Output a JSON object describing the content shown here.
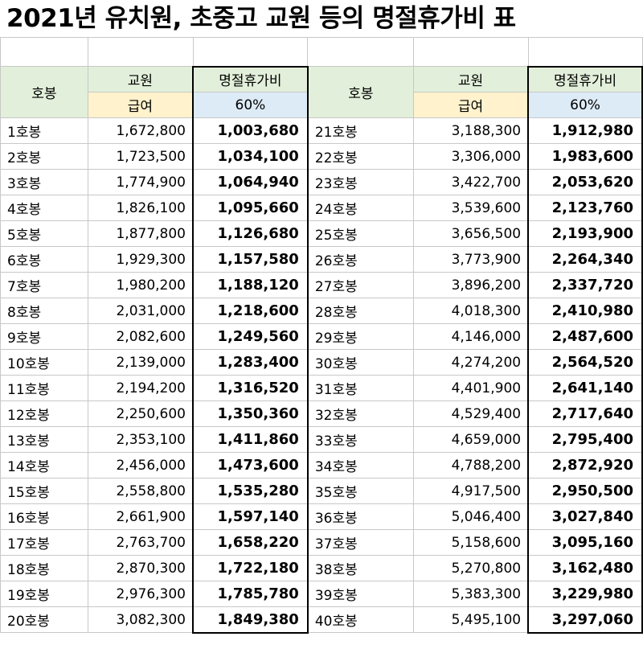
{
  "title": "2021년 유치원, 초중고 교원 등의 명절휴가비 표",
  "headers": {
    "grade": "호봉",
    "teacher": "교원",
    "pay": "급여",
    "holiday": "명절휴가비",
    "rate": "60%"
  },
  "left": [
    {
      "grade": "1호봉",
      "pay": "1,672,800",
      "holiday": "1,003,680"
    },
    {
      "grade": "2호봉",
      "pay": "1,723,500",
      "holiday": "1,034,100"
    },
    {
      "grade": "3호봉",
      "pay": "1,774,900",
      "holiday": "1,064,940"
    },
    {
      "grade": "4호봉",
      "pay": "1,826,100",
      "holiday": "1,095,660"
    },
    {
      "grade": "5호봉",
      "pay": "1,877,800",
      "holiday": "1,126,680"
    },
    {
      "grade": "6호봉",
      "pay": "1,929,300",
      "holiday": "1,157,580"
    },
    {
      "grade": "7호봉",
      "pay": "1,980,200",
      "holiday": "1,188,120"
    },
    {
      "grade": "8호봉",
      "pay": "2,031,000",
      "holiday": "1,218,600"
    },
    {
      "grade": "9호봉",
      "pay": "2,082,600",
      "holiday": "1,249,560"
    },
    {
      "grade": "10호봉",
      "pay": "2,139,000",
      "holiday": "1,283,400"
    },
    {
      "grade": "11호봉",
      "pay": "2,194,200",
      "holiday": "1,316,520"
    },
    {
      "grade": "12호봉",
      "pay": "2,250,600",
      "holiday": "1,350,360"
    },
    {
      "grade": "13호봉",
      "pay": "2,353,100",
      "holiday": "1,411,860"
    },
    {
      "grade": "14호봉",
      "pay": "2,456,000",
      "holiday": "1,473,600"
    },
    {
      "grade": "15호봉",
      "pay": "2,558,800",
      "holiday": "1,535,280"
    },
    {
      "grade": "16호봉",
      "pay": "2,661,900",
      "holiday": "1,597,140"
    },
    {
      "grade": "17호봉",
      "pay": "2,763,700",
      "holiday": "1,658,220"
    },
    {
      "grade": "18호봉",
      "pay": "2,870,300",
      "holiday": "1,722,180"
    },
    {
      "grade": "19호봉",
      "pay": "2,976,300",
      "holiday": "1,785,780"
    },
    {
      "grade": "20호봉",
      "pay": "3,082,300",
      "holiday": "1,849,380"
    }
  ],
  "right": [
    {
      "grade": "21호봉",
      "pay": "3,188,300",
      "holiday": "1,912,980"
    },
    {
      "grade": "22호봉",
      "pay": "3,306,000",
      "holiday": "1,983,600"
    },
    {
      "grade": "23호봉",
      "pay": "3,422,700",
      "holiday": "2,053,620"
    },
    {
      "grade": "24호봉",
      "pay": "3,539,600",
      "holiday": "2,123,760"
    },
    {
      "grade": "25호봉",
      "pay": "3,656,500",
      "holiday": "2,193,900"
    },
    {
      "grade": "26호봉",
      "pay": "3,773,900",
      "holiday": "2,264,340"
    },
    {
      "grade": "27호봉",
      "pay": "3,896,200",
      "holiday": "2,337,720"
    },
    {
      "grade": "28호봉",
      "pay": "4,018,300",
      "holiday": "2,410,980"
    },
    {
      "grade": "29호봉",
      "pay": "4,146,000",
      "holiday": "2,487,600"
    },
    {
      "grade": "30호봉",
      "pay": "4,274,200",
      "holiday": "2,564,520"
    },
    {
      "grade": "31호봉",
      "pay": "4,401,900",
      "holiday": "2,641,140"
    },
    {
      "grade": "32호봉",
      "pay": "4,529,400",
      "holiday": "2,717,640"
    },
    {
      "grade": "33호봉",
      "pay": "4,659,000",
      "holiday": "2,795,400"
    },
    {
      "grade": "34호봉",
      "pay": "4,788,200",
      "holiday": "2,872,920"
    },
    {
      "grade": "35호봉",
      "pay": "4,917,500",
      "holiday": "2,950,500"
    },
    {
      "grade": "36호봉",
      "pay": "5,046,400",
      "holiday": "3,027,840"
    },
    {
      "grade": "37호봉",
      "pay": "5,158,600",
      "holiday": "3,095,160"
    },
    {
      "grade": "38호봉",
      "pay": "5,270,800",
      "holiday": "3,162,480"
    },
    {
      "grade": "39호봉",
      "pay": "5,383,300",
      "holiday": "3,229,980"
    },
    {
      "grade": "40호봉",
      "pay": "5,495,100",
      "holiday": "3,297,060"
    }
  ]
}
